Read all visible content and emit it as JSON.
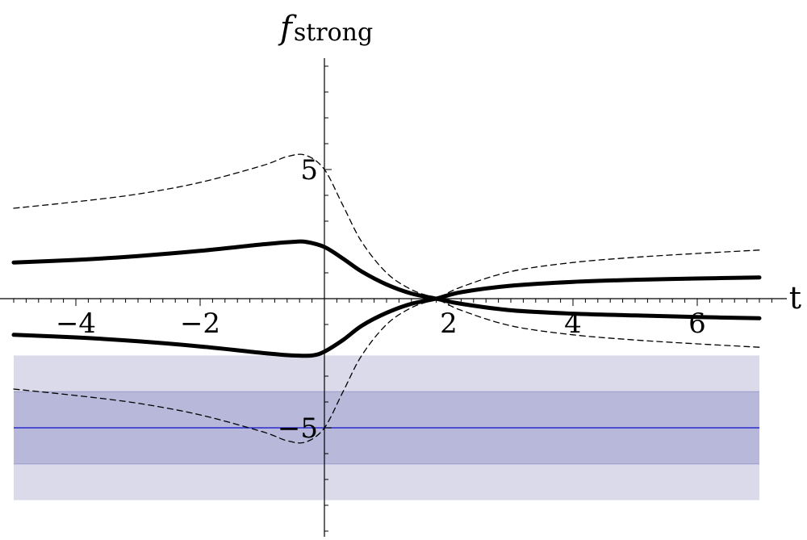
{
  "chart_data": {
    "type": "line",
    "xlabel": "t",
    "ylabel": {
      "main": "f",
      "sub": "strong"
    },
    "xlim": [
      -5.2,
      7.3
    ],
    "ylim": [
      -9.0,
      9.0
    ],
    "x_ticks": [
      {
        "value": -4,
        "label": "−4"
      },
      {
        "value": -2,
        "label": "−2"
      },
      {
        "value": 2,
        "label": "2"
      },
      {
        "value": 4,
        "label": "4"
      },
      {
        "value": 6,
        "label": "6"
      }
    ],
    "y_ticks": [
      {
        "value": 5,
        "label": "5"
      },
      {
        "value": -5,
        "label": "−5"
      }
    ],
    "bands": [
      {
        "y_range": [
          -7.8,
          -2.2
        ],
        "x_range": [
          -5.0,
          7.0
        ],
        "color": "#dadaea"
      },
      {
        "y_range": [
          -6.4,
          -3.6
        ],
        "x_range": [
          -5.0,
          7.0
        ],
        "color": "#b7b8da"
      }
    ],
    "reference_line": {
      "y": -5.0,
      "x_range": [
        -5.0,
        7.0
      ],
      "color": "#2a2ad0"
    },
    "series": [
      {
        "style": "solid",
        "x": [
          -5.0,
          -4.0,
          -3.0,
          -2.0,
          -1.0,
          -0.5,
          -0.3,
          0.0,
          0.3,
          0.6,
          1.0,
          1.4,
          1.8,
          2.2,
          3.0,
          4.0,
          5.0,
          6.0,
          7.0
        ],
        "y": [
          1.4,
          1.5,
          1.65,
          1.85,
          2.1,
          2.2,
          2.2,
          2.0,
          1.55,
          1.05,
          0.55,
          0.2,
          0.0,
          -0.2,
          -0.45,
          -0.58,
          -0.65,
          -0.71,
          -0.76
        ]
      },
      {
        "style": "solid",
        "x": [
          -5.0,
          -4.0,
          -3.0,
          -2.0,
          -1.0,
          -0.5,
          -0.2,
          0.0,
          0.3,
          0.6,
          1.0,
          1.4,
          1.8,
          2.2,
          3.0,
          4.0,
          5.0,
          6.0,
          7.0
        ],
        "y": [
          -1.4,
          -1.5,
          -1.65,
          -1.85,
          -2.1,
          -2.2,
          -2.2,
          -2.05,
          -1.6,
          -1.05,
          -0.55,
          -0.2,
          0.0,
          0.25,
          0.5,
          0.65,
          0.73,
          0.78,
          0.82
        ]
      },
      {
        "style": "dashed",
        "x": [
          -5.0,
          -4.0,
          -3.0,
          -2.0,
          -1.0,
          -0.6,
          -0.3,
          0.0,
          0.3,
          0.6,
          1.0,
          1.4,
          1.8,
          2.2,
          3.0,
          4.0,
          5.0,
          6.0,
          7.0
        ],
        "y": [
          3.5,
          3.75,
          4.05,
          4.5,
          5.15,
          5.5,
          5.55,
          5.0,
          3.6,
          2.2,
          1.0,
          0.35,
          0.0,
          -0.45,
          -1.05,
          -1.4,
          -1.6,
          -1.75,
          -1.88
        ]
      },
      {
        "style": "dashed",
        "x": [
          -5.0,
          -4.0,
          -3.0,
          -2.0,
          -1.0,
          -0.6,
          -0.3,
          0.0,
          0.3,
          0.6,
          1.0,
          1.4,
          1.8,
          2.2,
          3.0,
          4.0,
          5.0,
          6.0,
          7.0
        ],
        "y": [
          -3.5,
          -3.75,
          -4.05,
          -4.5,
          -5.15,
          -5.5,
          -5.55,
          -5.0,
          -3.6,
          -2.2,
          -1.0,
          -0.35,
          0.0,
          0.45,
          1.05,
          1.4,
          1.6,
          1.75,
          1.88
        ]
      }
    ],
    "grid": false,
    "legend": "none"
  }
}
